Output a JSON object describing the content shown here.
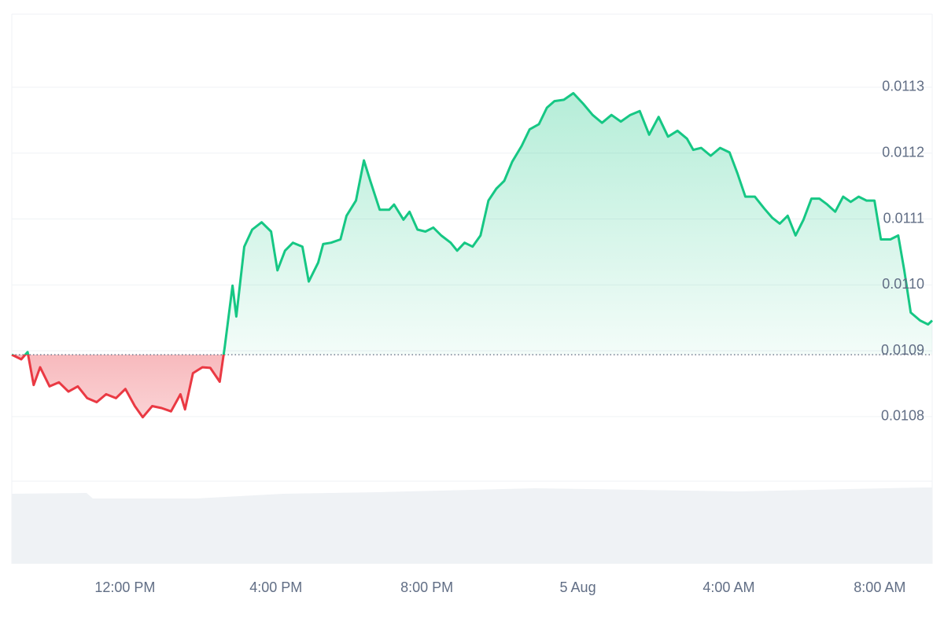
{
  "chart_data": {
    "type": "line",
    "x": [
      9.0,
      9.25,
      9.42,
      9.58,
      9.75,
      10.0,
      10.25,
      10.5,
      10.75,
      11.0,
      11.25,
      11.5,
      11.76,
      12.01,
      12.26,
      12.47,
      12.72,
      12.97,
      13.22,
      13.47,
      13.59,
      13.8,
      14.05,
      14.26,
      14.51,
      14.64,
      14.85,
      14.95,
      15.16,
      15.37,
      15.62,
      15.87,
      16.04,
      16.24,
      16.45,
      16.7,
      16.87,
      17.12,
      17.25,
      17.46,
      17.71,
      17.87,
      18.12,
      18.33,
      18.5,
      18.75,
      19.0,
      19.13,
      19.38,
      19.54,
      19.75,
      19.96,
      20.17,
      20.38,
      20.63,
      20.8,
      21.0,
      21.21,
      21.42,
      21.63,
      21.84,
      22.05,
      22.26,
      22.51,
      22.72,
      22.97,
      23.18,
      23.38,
      23.63,
      23.88,
      24.14,
      24.39,
      24.64,
      24.89,
      25.14,
      25.39,
      25.64,
      25.89,
      26.14,
      26.39,
      26.64,
      26.89,
      27.06,
      27.27,
      27.52,
      27.77,
      28.02,
      28.23,
      28.44,
      28.69,
      28.94,
      29.15,
      29.35,
      29.56,
      29.77,
      29.98,
      30.19,
      30.4,
      30.61,
      30.82,
      31.03,
      31.23,
      31.44,
      31.65,
      31.86,
      32.03,
      32.28,
      32.49,
      32.65,
      32.82,
      33.07,
      33.28,
      33.39
    ],
    "values": [
      0.010894,
      0.010887,
      0.010898,
      0.010848,
      0.010875,
      0.010846,
      0.010852,
      0.010838,
      0.010846,
      0.010828,
      0.010822,
      0.010834,
      0.010828,
      0.010842,
      0.010816,
      0.010799,
      0.010816,
      0.010813,
      0.010808,
      0.010834,
      0.010811,
      0.010866,
      0.010875,
      0.010874,
      0.010853,
      0.010905,
      0.010999,
      0.010952,
      0.011058,
      0.011084,
      0.011095,
      0.011081,
      0.011022,
      0.011052,
      0.011064,
      0.011058,
      0.011005,
      0.011034,
      0.011062,
      0.011064,
      0.011069,
      0.011105,
      0.011128,
      0.011189,
      0.011158,
      0.011114,
      0.011114,
      0.011122,
      0.011099,
      0.011111,
      0.011084,
      0.011081,
      0.011087,
      0.011075,
      0.011064,
      0.011052,
      0.011064,
      0.011058,
      0.011075,
      0.011128,
      0.011146,
      0.011158,
      0.011187,
      0.011211,
      0.011236,
      0.011244,
      0.011269,
      0.011279,
      0.011281,
      0.011291,
      0.011275,
      0.011258,
      0.011246,
      0.011258,
      0.011248,
      0.011258,
      0.011264,
      0.011228,
      0.011255,
      0.011225,
      0.011234,
      0.011222,
      0.011205,
      0.011208,
      0.011196,
      0.011208,
      0.011201,
      0.011169,
      0.011134,
      0.011134,
      0.011116,
      0.011102,
      0.011093,
      0.011105,
      0.011075,
      0.011099,
      0.011131,
      0.011131,
      0.011122,
      0.011111,
      0.011134,
      0.011126,
      0.011134,
      0.011128,
      0.011128,
      0.011069,
      0.011069,
      0.011075,
      0.011022,
      0.010958,
      0.010946,
      0.01094,
      0.010946
    ],
    "baseline": 0.010894,
    "up_color": "#16c784",
    "down_color": "#ea3943",
    "xlim": [
      9,
      33.39
    ],
    "xticks": [
      {
        "value": 12,
        "label": "12:00 PM"
      },
      {
        "value": 16,
        "label": "4:00 PM"
      },
      {
        "value": 20,
        "label": "8:00 PM"
      },
      {
        "value": 24,
        "label": "5 Aug"
      },
      {
        "value": 28,
        "label": "4:00 AM"
      },
      {
        "value": 32,
        "label": "8:00 AM"
      }
    ],
    "ylim": [
      0.010702,
      0.011411
    ],
    "yticks": [
      0.0108,
      0.0109,
      {
        "value": 0.011,
        "label": "0.0110"
      },
      0.0111,
      0.0112,
      0.0113
    ],
    "grid": true
  }
}
